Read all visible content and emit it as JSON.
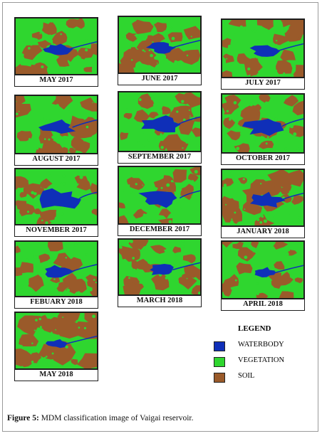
{
  "figure": {
    "caption_label": "Figure 5:",
    "caption_text": " MDM classification image of Vaigai reservoir."
  },
  "colors": {
    "waterbody": "#0f2fb8",
    "vegetation": "#2fd62f",
    "soil": "#9a5a2a"
  },
  "panels": [
    {
      "label": "MAY 2017"
    },
    {
      "label": "JUNE 2017"
    },
    {
      "label": "JULY 2017"
    },
    {
      "label": "AUGUST 2017"
    },
    {
      "label": "SEPTEMBER 2017"
    },
    {
      "label": "OCTOBER 2017"
    },
    {
      "label": "NOVEMBER 2017"
    },
    {
      "label": "DECEMBER 2017"
    },
    {
      "label": "JANUARY 2018"
    },
    {
      "label": "FEBUARY 2018"
    },
    {
      "label": "MARCH 2018"
    },
    {
      "label": "APRIL 2018"
    },
    {
      "label": "MAY 2018"
    }
  ],
  "legend": {
    "title": "LEGEND",
    "items": [
      {
        "label": "WATERBODY",
        "color": "#0f2fb8"
      },
      {
        "label": "VEGETATION",
        "color": "#2fd62f"
      },
      {
        "label": "SOIL",
        "color": "#9a5a2a"
      }
    ]
  }
}
